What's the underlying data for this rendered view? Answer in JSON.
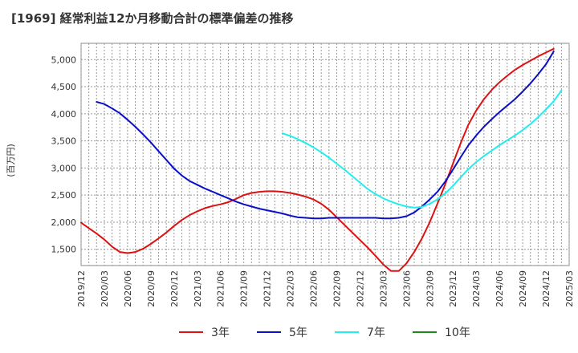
{
  "chart_data": {
    "type": "line",
    "title": "[1969]  経常利益12か月移動合計の標準偏差の推移",
    "ylabel": "(百万円)",
    "xlabel": "",
    "ylim": [
      1200,
      5300
    ],
    "y_ticks": [
      1500,
      2000,
      2500,
      3000,
      3500,
      4000,
      4500,
      5000
    ],
    "y_tick_labels": [
      "1,500",
      "2,000",
      "2,500",
      "3,000",
      "3,500",
      "4,000",
      "4,500",
      "5,000"
    ],
    "x_tick_labels": [
      "2019/12",
      "2020/03",
      "2020/06",
      "2020/09",
      "2020/12",
      "2021/03",
      "2021/06",
      "2021/09",
      "2021/12",
      "2022/03",
      "2022/06",
      "2022/09",
      "2022/12",
      "2023/03",
      "2023/06",
      "2023/09",
      "2023/12",
      "2024/03",
      "2024/06",
      "2024/09",
      "2024/12",
      "2025/03"
    ],
    "grid": true,
    "legend_position": "bottom",
    "series": [
      {
        "name": "3年",
        "color": "#dd1111",
        "points": [
          [
            "2019/12",
            1990
          ],
          [
            "2020/01",
            1890
          ],
          [
            "2020/02",
            1790
          ],
          [
            "2020/03",
            1680
          ],
          [
            "2020/04",
            1550
          ],
          [
            "2020/05",
            1450
          ],
          [
            "2020/06",
            1430
          ],
          [
            "2020/07",
            1450
          ],
          [
            "2020/08",
            1510
          ],
          [
            "2020/09",
            1600
          ],
          [
            "2020/10",
            1700
          ],
          [
            "2020/11",
            1810
          ],
          [
            "2020/12",
            1930
          ],
          [
            "2021/01",
            2040
          ],
          [
            "2021/02",
            2130
          ],
          [
            "2021/03",
            2200
          ],
          [
            "2021/04",
            2260
          ],
          [
            "2021/05",
            2300
          ],
          [
            "2021/06",
            2330
          ],
          [
            "2021/07",
            2370
          ],
          [
            "2021/08",
            2430
          ],
          [
            "2021/09",
            2500
          ],
          [
            "2021/10",
            2540
          ],
          [
            "2021/11",
            2560
          ],
          [
            "2021/12",
            2570
          ],
          [
            "2022/01",
            2570
          ],
          [
            "2022/02",
            2560
          ],
          [
            "2022/03",
            2540
          ],
          [
            "2022/04",
            2510
          ],
          [
            "2022/05",
            2470
          ],
          [
            "2022/06",
            2420
          ],
          [
            "2022/07",
            2340
          ],
          [
            "2022/08",
            2230
          ],
          [
            "2022/09",
            2090
          ],
          [
            "2022/10",
            1950
          ],
          [
            "2022/11",
            1810
          ],
          [
            "2022/12",
            1670
          ],
          [
            "2023/01",
            1530
          ],
          [
            "2023/02",
            1380
          ],
          [
            "2023/03",
            1220
          ],
          [
            "2023/04",
            1100
          ],
          [
            "2023/05",
            1100
          ],
          [
            "2023/06",
            1240
          ],
          [
            "2023/07",
            1450
          ],
          [
            "2023/08",
            1700
          ],
          [
            "2023/09",
            2000
          ],
          [
            "2023/10",
            2340
          ],
          [
            "2023/11",
            2700
          ],
          [
            "2023/12",
            3080
          ],
          [
            "2024/01",
            3460
          ],
          [
            "2024/02",
            3800
          ],
          [
            "2024/03",
            4060
          ],
          [
            "2024/04",
            4270
          ],
          [
            "2024/05",
            4440
          ],
          [
            "2024/06",
            4580
          ],
          [
            "2024/07",
            4700
          ],
          [
            "2024/08",
            4810
          ],
          [
            "2024/09",
            4900
          ],
          [
            "2024/10",
            4980
          ],
          [
            "2024/11",
            5060
          ],
          [
            "2024/12",
            5130
          ],
          [
            "2025/01",
            5200
          ]
        ]
      },
      {
        "name": "5年",
        "color": "#0a10c8",
        "points": [
          [
            "2020/02",
            4220
          ],
          [
            "2020/03",
            4180
          ],
          [
            "2020/04",
            4100
          ],
          [
            "2020/05",
            4010
          ],
          [
            "2020/06",
            3890
          ],
          [
            "2020/07",
            3760
          ],
          [
            "2020/08",
            3620
          ],
          [
            "2020/09",
            3470
          ],
          [
            "2020/10",
            3310
          ],
          [
            "2020/11",
            3150
          ],
          [
            "2020/12",
            2990
          ],
          [
            "2021/01",
            2860
          ],
          [
            "2021/02",
            2760
          ],
          [
            "2021/03",
            2690
          ],
          [
            "2021/04",
            2620
          ],
          [
            "2021/05",
            2560
          ],
          [
            "2021/06",
            2500
          ],
          [
            "2021/07",
            2440
          ],
          [
            "2021/08",
            2380
          ],
          [
            "2021/09",
            2330
          ],
          [
            "2021/10",
            2290
          ],
          [
            "2021/11",
            2250
          ],
          [
            "2021/12",
            2220
          ],
          [
            "2022/01",
            2190
          ],
          [
            "2022/02",
            2160
          ],
          [
            "2022/03",
            2120
          ],
          [
            "2022/04",
            2090
          ],
          [
            "2022/05",
            2080
          ],
          [
            "2022/06",
            2070
          ],
          [
            "2022/07",
            2070
          ],
          [
            "2022/08",
            2080
          ],
          [
            "2022/09",
            2080
          ],
          [
            "2022/10",
            2080
          ],
          [
            "2022/11",
            2080
          ],
          [
            "2022/12",
            2080
          ],
          [
            "2023/01",
            2080
          ],
          [
            "2023/02",
            2080
          ],
          [
            "2023/03",
            2070
          ],
          [
            "2023/04",
            2070
          ],
          [
            "2023/05",
            2080
          ],
          [
            "2023/06",
            2110
          ],
          [
            "2023/07",
            2180
          ],
          [
            "2023/08",
            2290
          ],
          [
            "2023/09",
            2420
          ],
          [
            "2023/10",
            2560
          ],
          [
            "2023/11",
            2750
          ],
          [
            "2023/12",
            2970
          ],
          [
            "2024/01",
            3200
          ],
          [
            "2024/02",
            3420
          ],
          [
            "2024/03",
            3600
          ],
          [
            "2024/04",
            3760
          ],
          [
            "2024/05",
            3900
          ],
          [
            "2024/06",
            4030
          ],
          [
            "2024/07",
            4150
          ],
          [
            "2024/08",
            4270
          ],
          [
            "2024/09",
            4410
          ],
          [
            "2024/10",
            4560
          ],
          [
            "2024/11",
            4730
          ],
          [
            "2024/12",
            4910
          ],
          [
            "2025/01",
            5150
          ]
        ]
      },
      {
        "name": "7年",
        "color": "#22eeee",
        "points": [
          [
            "2022/02",
            3640
          ],
          [
            "2022/03",
            3590
          ],
          [
            "2022/04",
            3530
          ],
          [
            "2022/05",
            3460
          ],
          [
            "2022/06",
            3380
          ],
          [
            "2022/07",
            3290
          ],
          [
            "2022/08",
            3190
          ],
          [
            "2022/09",
            3080
          ],
          [
            "2022/10",
            2970
          ],
          [
            "2022/11",
            2850
          ],
          [
            "2022/12",
            2730
          ],
          [
            "2023/01",
            2610
          ],
          [
            "2023/02",
            2520
          ],
          [
            "2023/03",
            2440
          ],
          [
            "2023/04",
            2380
          ],
          [
            "2023/05",
            2330
          ],
          [
            "2023/06",
            2290
          ],
          [
            "2023/07",
            2270
          ],
          [
            "2023/08",
            2280
          ],
          [
            "2023/09",
            2340
          ],
          [
            "2023/10",
            2420
          ],
          [
            "2023/11",
            2530
          ],
          [
            "2023/12",
            2670
          ],
          [
            "2024/01",
            2830
          ],
          [
            "2024/02",
            2980
          ],
          [
            "2024/03",
            3110
          ],
          [
            "2024/04",
            3220
          ],
          [
            "2024/05",
            3320
          ],
          [
            "2024/06",
            3420
          ],
          [
            "2024/07",
            3510
          ],
          [
            "2024/08",
            3600
          ],
          [
            "2024/09",
            3700
          ],
          [
            "2024/10",
            3810
          ],
          [
            "2024/11",
            3940
          ],
          [
            "2024/12",
            4080
          ],
          [
            "2025/01",
            4230
          ],
          [
            "2025/02",
            4430
          ]
        ]
      },
      {
        "name": "10年",
        "color": "#1a8a1a",
        "points": []
      }
    ]
  }
}
